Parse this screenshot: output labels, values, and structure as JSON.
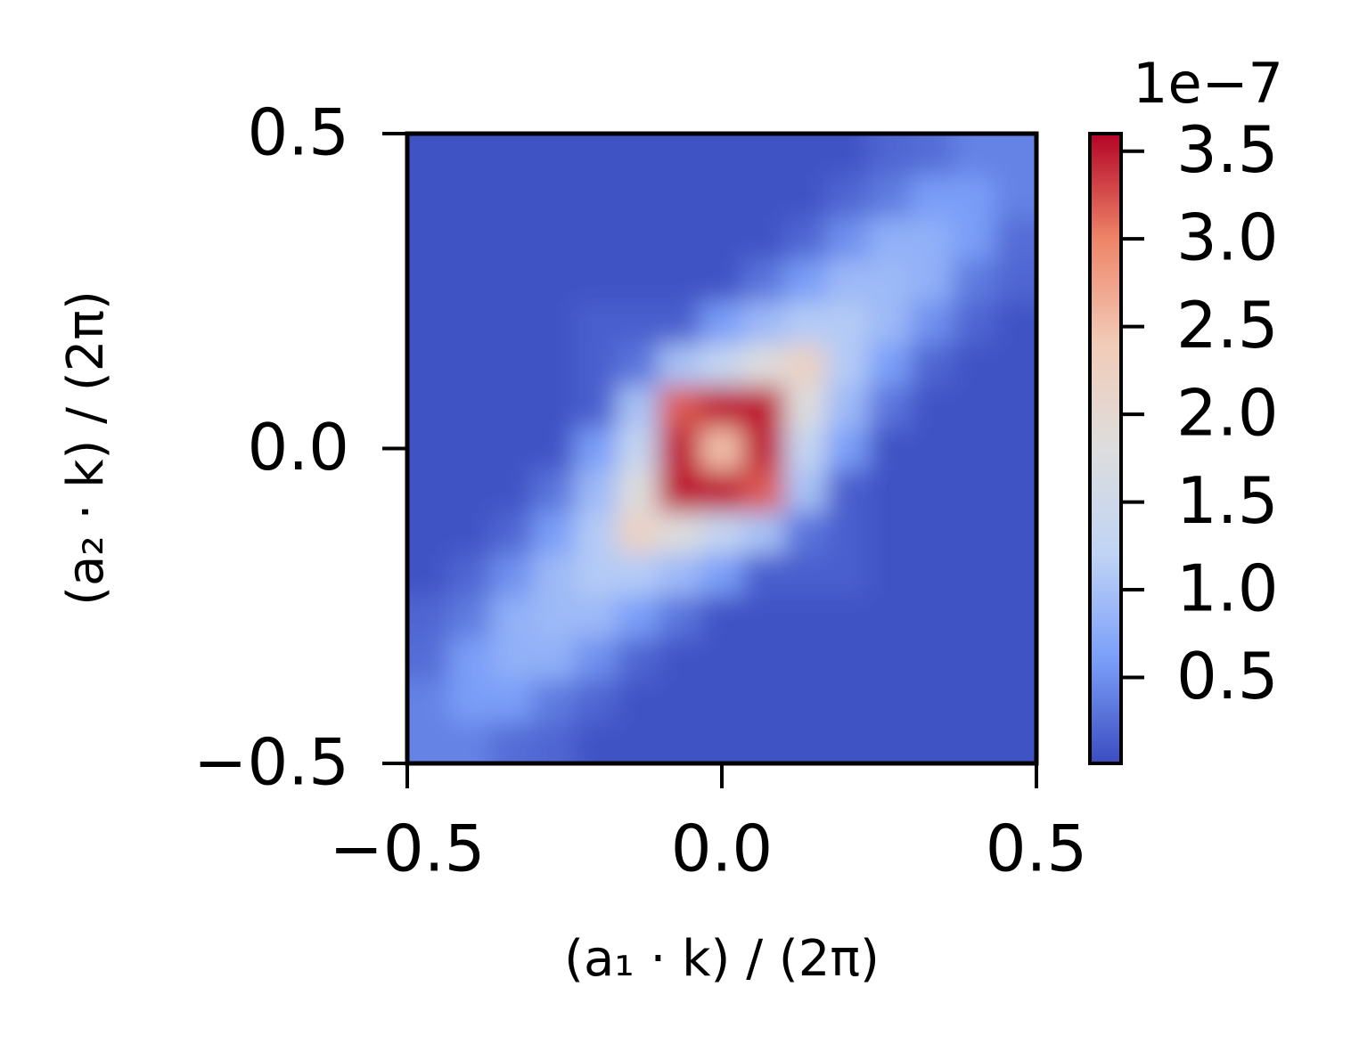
{
  "chart_data": {
    "type": "heatmap",
    "xlabel": "(a₁ · k) / (2π)",
    "ylabel": "(a₂ · k) / (2π)",
    "x": [
      -0.4667,
      -0.4,
      -0.3333,
      -0.2667,
      -0.2,
      -0.1333,
      -0.0667,
      0,
      0.0667,
      0.1333,
      0.2,
      0.2667,
      0.3333,
      0.4,
      0.4667
    ],
    "y": [
      -0.4667,
      -0.4,
      -0.3333,
      -0.2667,
      -0.2,
      -0.1333,
      -0.0667,
      0,
      0.0667,
      0.1333,
      0.2,
      0.2667,
      0.3333,
      0.4,
      0.4667
    ],
    "z": [
      [
        0.4,
        0.4,
        0.25,
        0.2,
        0.06,
        0.06,
        0.06,
        0.06,
        0.06,
        0.06,
        0.06,
        0.06,
        0.06,
        0.06,
        0.06
      ],
      [
        0.4,
        0.6,
        0.6,
        0.35,
        0.2,
        0.06,
        0.06,
        0.06,
        0.06,
        0.06,
        0.06,
        0.06,
        0.06,
        0.06,
        0.06
      ],
      [
        0.25,
        0.6,
        0.8,
        0.8,
        0.5,
        0.2,
        0.06,
        0.06,
        0.06,
        0.06,
        0.06,
        0.06,
        0.06,
        0.06,
        0.06
      ],
      [
        0.2,
        0.35,
        0.8,
        0.9,
        0.9,
        0.6,
        0.3,
        0.06,
        0.06,
        0.06,
        0.06,
        0.06,
        0.06,
        0.06,
        0.06
      ],
      [
        0.06,
        0.2,
        0.5,
        0.9,
        1.1,
        1.1,
        0.9,
        0.6,
        0.15,
        0.15,
        0.15,
        0.06,
        0.06,
        0.06,
        0.06
      ],
      [
        0.06,
        0.06,
        0.2,
        0.6,
        1.1,
        2.2,
        1.8,
        1.3,
        1.0,
        0.3,
        0.15,
        0.06,
        0.06,
        0.06,
        0.06
      ],
      [
        0.06,
        0.06,
        0.06,
        0.3,
        0.9,
        1.8,
        3.5,
        3.5,
        3.2,
        1.0,
        0.15,
        0.06,
        0.06,
        0.06,
        0.06
      ],
      [
        0.06,
        0.06,
        0.06,
        0.06,
        0.6,
        1.3,
        3.5,
        2.5,
        3.5,
        1.3,
        0.6,
        0.06,
        0.06,
        0.06,
        0.06
      ],
      [
        0.06,
        0.06,
        0.06,
        0.06,
        0.15,
        1.0,
        3.2,
        3.5,
        3.5,
        1.8,
        0.9,
        0.3,
        0.06,
        0.06,
        0.06
      ],
      [
        0.06,
        0.06,
        0.06,
        0.06,
        0.15,
        0.3,
        1.0,
        1.3,
        1.8,
        2.2,
        1.1,
        0.6,
        0.2,
        0.06,
        0.06
      ],
      [
        0.06,
        0.06,
        0.06,
        0.06,
        0.15,
        0.15,
        0.15,
        0.6,
        0.9,
        1.1,
        1.1,
        0.9,
        0.5,
        0.2,
        0.06
      ],
      [
        0.06,
        0.06,
        0.06,
        0.06,
        0.06,
        0.06,
        0.06,
        0.06,
        0.3,
        0.6,
        0.9,
        0.9,
        0.8,
        0.35,
        0.2
      ],
      [
        0.06,
        0.06,
        0.06,
        0.06,
        0.06,
        0.06,
        0.06,
        0.06,
        0.06,
        0.2,
        0.5,
        0.8,
        0.8,
        0.6,
        0.25
      ],
      [
        0.06,
        0.06,
        0.06,
        0.06,
        0.06,
        0.06,
        0.06,
        0.06,
        0.06,
        0.06,
        0.2,
        0.35,
        0.6,
        0.6,
        0.4
      ],
      [
        0.06,
        0.06,
        0.06,
        0.06,
        0.06,
        0.06,
        0.06,
        0.06,
        0.06,
        0.06,
        0.06,
        0.2,
        0.25,
        0.4,
        0.4
      ]
    ],
    "xlim": [
      -0.5,
      0.5
    ],
    "ylim": [
      -0.5,
      0.5
    ],
    "xticks": [
      {
        "value": -0.5,
        "label": "−0.5"
      },
      {
        "value": 0,
        "label": "0.0"
      },
      0.5
    ],
    "yticks": [
      {
        "value": -0.5,
        "label": "−0.5"
      },
      {
        "value": 0,
        "label": "0.0"
      },
      0.5
    ],
    "colorbar": {
      "lim": [
        0.01,
        3.6
      ],
      "ticks": [
        0.5,
        {
          "value": 1,
          "label": "1.0"
        },
        1.5,
        {
          "value": 2,
          "label": "2.0"
        },
        2.5,
        {
          "value": 3,
          "label": "3.0"
        },
        3.5
      ],
      "offset_label": "1e−7",
      "colormap": [
        "#3b4cc0",
        "#7b9ff9",
        "#c0d4f5",
        "#dddddd",
        "#f2cbb7",
        "#ee8468",
        "#b40426"
      ]
    }
  }
}
